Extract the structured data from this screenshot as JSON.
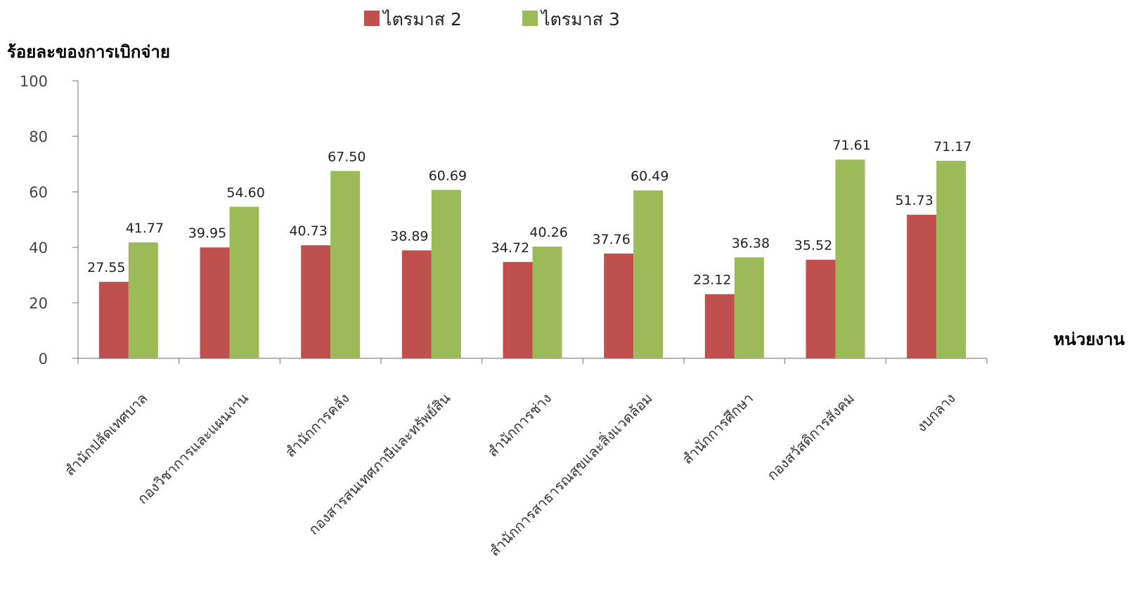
{
  "chart_data": {
    "type": "bar",
    "ylabel": "ร้อยละของการเบิกจ่าย",
    "xlabel": "หน่วยงาน",
    "ylim": [
      0,
      100
    ],
    "yticks": [
      0,
      20,
      40,
      60,
      80,
      100
    ],
    "grid": false,
    "legend_position": "top",
    "categories": [
      "สำนักปลัดเทศบาล",
      "กองวิชาการและแผนงาน",
      "สำนักการคลัง",
      "กองสารสนเทศภาษีและทรัพย์สิน",
      "สำนักการช่าง",
      "สำนักการสาธารณสุขและสิ่งแวดล้อม",
      "สำนักการศึกษา",
      "กองสวัสดิการสังคม",
      "งบกลาง"
    ],
    "series": [
      {
        "name": "ไตรมาส 2",
        "color": "#c0504d",
        "values": [
          27.55,
          39.95,
          40.73,
          38.89,
          34.72,
          37.76,
          23.12,
          35.52,
          51.73
        ],
        "labels": [
          "27.55",
          "39.95",
          "40.73",
          "38.89",
          "34.72",
          "37.76",
          "23.12",
          "35.52",
          "51.73"
        ]
      },
      {
        "name": "ไตรมาส 3",
        "color": "#9bbb59",
        "values": [
          41.77,
          54.6,
          67.5,
          60.69,
          40.26,
          60.49,
          36.38,
          71.61,
          71.17
        ],
        "labels": [
          "41.77",
          "54.60",
          "67.50",
          "60.69",
          "40.26",
          "60.49",
          "36.38",
          "71.61",
          "71.17"
        ]
      }
    ]
  }
}
